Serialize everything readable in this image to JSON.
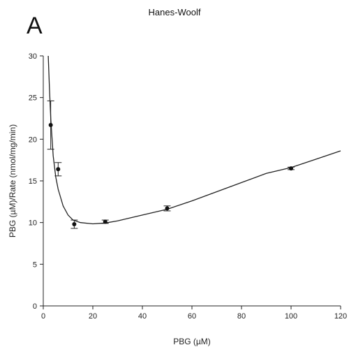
{
  "panel_label": "A",
  "chart_data": {
    "type": "scatter",
    "title": "Hanes-Woolf",
    "xlabel": "PBG (µM)",
    "ylabel": "PBG (µM)/Rate (nmol/mg/min)",
    "xlim": [
      0,
      120
    ],
    "ylim": [
      0,
      30
    ],
    "xticks": [
      0,
      20,
      40,
      60,
      80,
      100,
      120
    ],
    "yticks": [
      0,
      5,
      10,
      15,
      20,
      25,
      30
    ],
    "grid": false,
    "series": [
      {
        "points": [
          {
            "x": 3,
            "y": 21.7,
            "err": 2.9
          },
          {
            "x": 6,
            "y": 16.4,
            "err": 0.8
          },
          {
            "x": 12.5,
            "y": 9.8,
            "err": 0.5
          },
          {
            "x": 25,
            "y": 10.1,
            "err": 0.2
          },
          {
            "x": 50,
            "y": 11.7,
            "err": 0.3
          },
          {
            "x": 100,
            "y": 16.5,
            "err": 0.15
          }
        ]
      }
    ],
    "fit_curve": [
      [
        2.0,
        30.0
      ],
      [
        2.5,
        26.0
      ],
      [
        3.0,
        22.5
      ],
      [
        4.0,
        18.0
      ],
      [
        5.0,
        15.5
      ],
      [
        6.0,
        14.0
      ],
      [
        8.0,
        12.0
      ],
      [
        10.0,
        10.9
      ],
      [
        12.0,
        10.3
      ],
      [
        15.0,
        10.0
      ],
      [
        20.0,
        9.85
      ],
      [
        25.0,
        9.95
      ],
      [
        30.0,
        10.2
      ],
      [
        40.0,
        10.9
      ],
      [
        50.0,
        11.6
      ],
      [
        60.0,
        12.6
      ],
      [
        70.0,
        13.7
      ],
      [
        80.0,
        14.8
      ],
      [
        90.0,
        15.9
      ],
      [
        100.0,
        16.6
      ],
      [
        110.0,
        17.6
      ],
      [
        120.0,
        18.6
      ]
    ]
  }
}
